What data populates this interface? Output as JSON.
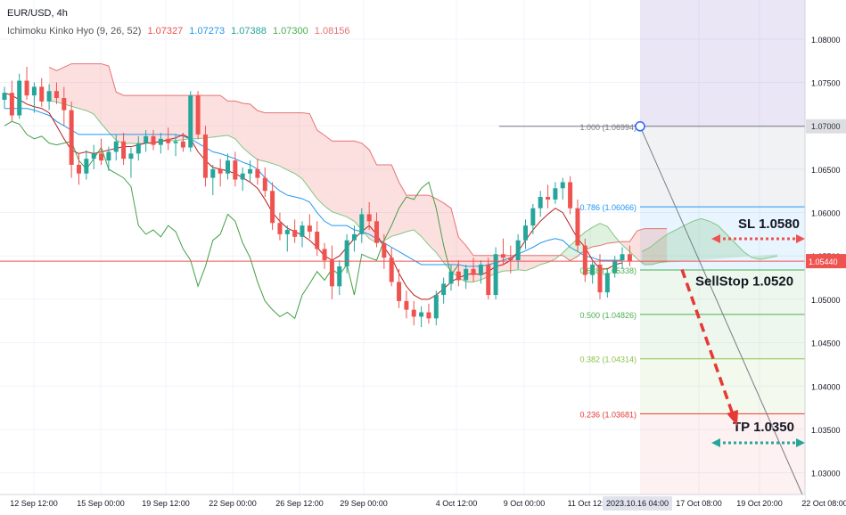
{
  "legend": {
    "symbol": "EUR/USD",
    "timeframe": "4h",
    "indicator": "Ichimoku Kinko Hyo (9, 26, 52)",
    "values": [
      {
        "value": "1.07327",
        "color": "#ef5350"
      },
      {
        "value": "1.07273",
        "color": "#2196f3"
      },
      {
        "value": "1.07388",
        "color": "#26a69a"
      },
      {
        "value": "1.07300",
        "color": "#4caf50"
      },
      {
        "value": "1.08156",
        "color": "#e57373"
      }
    ]
  },
  "chart_data": {
    "type": "candlestick",
    "ylim": [
      1.0275,
      1.0845
    ],
    "y_ticks": [
      "1.08000",
      "1.07500",
      "1.07000",
      "1.06500",
      "1.06000",
      "1.05500",
      "1.05000",
      "1.04500",
      "1.04000",
      "1.03500",
      "1.03000"
    ],
    "x_ticks": [
      "12 Sep 12:00",
      "15 Sep 00:00",
      "19 Sep 12:00",
      "22 Sep 00:00",
      "26 Sep 12:00",
      "29 Sep 00:00",
      "4 Oct 12:00",
      "9 Oct 00:00",
      "11 Oct 12:00",
      "17 Oct 08:00",
      "19 Oct 20:00",
      "22 Oct 08:00"
    ],
    "x_highlight": "2023.10.16 04:00",
    "current_price": {
      "label": "1.05440",
      "value": 1.0544,
      "color": "#ef5350"
    },
    "fibonacci": [
      {
        "level": "1.000",
        "price": 1.06994,
        "label": "1.000 (1.06994)",
        "color": "#787b86"
      },
      {
        "level": "0.786",
        "price": 1.06066,
        "label": "0.786 (1.06066)",
        "color": "#2196f3"
      },
      {
        "level": "0.618",
        "price": 1.05338,
        "label": "0.618 (1.05338)",
        "color": "#4caf50"
      },
      {
        "level": "0.500",
        "price": 1.04826,
        "label": "0.500 (1.04826)",
        "color": "#4caf50"
      },
      {
        "level": "0.382",
        "price": 1.04314,
        "label": "0.382 (1.04314)",
        "color": "#8bc34a"
      },
      {
        "level": "0.236",
        "price": 1.03681,
        "label": "0.236 (1.03681)",
        "color": "#e53935"
      }
    ],
    "annotations": {
      "sl": {
        "text": "SL 1.0580",
        "price": 1.058
      },
      "sellstop": {
        "text": "SellStop 1.0520",
        "price": 1.052
      },
      "tp": {
        "text": "TP 1.0350",
        "price": 1.035
      }
    },
    "candles": [
      [
        1.073,
        1.0745,
        1.072,
        1.0738
      ],
      [
        1.0738,
        1.0752,
        1.0705,
        1.0712
      ],
      [
        1.0712,
        1.076,
        1.0708,
        1.0752
      ],
      [
        1.0752,
        1.0768,
        1.073,
        1.0735
      ],
      [
        1.0735,
        1.075,
        1.0715,
        1.0745
      ],
      [
        1.0745,
        1.0755,
        1.0722,
        1.0728
      ],
      [
        1.0728,
        1.0748,
        1.0718,
        1.074
      ],
      [
        1.074,
        1.075,
        1.0725,
        1.0732
      ],
      [
        1.0732,
        1.0745,
        1.07,
        1.0718
      ],
      [
        1.0718,
        1.0728,
        1.064,
        1.0655
      ],
      [
        1.0655,
        1.0668,
        1.0632,
        1.0645
      ],
      [
        1.0645,
        1.0672,
        1.0638,
        1.0662
      ],
      [
        1.0662,
        1.0678,
        1.065,
        1.0668
      ],
      [
        1.0668,
        1.0685,
        1.0655,
        1.066
      ],
      [
        1.066,
        1.0676,
        1.0648,
        1.067
      ],
      [
        1.067,
        1.069,
        1.066,
        1.0682
      ],
      [
        1.0682,
        1.0692,
        1.0655,
        1.0662
      ],
      [
        1.0662,
        1.0675,
        1.064,
        1.0668
      ],
      [
        1.0668,
        1.0688,
        1.066,
        1.068
      ],
      [
        1.068,
        1.0695,
        1.067,
        1.0688
      ],
      [
        1.0688,
        1.0695,
        1.0672,
        1.0678
      ],
      [
        1.0678,
        1.0692,
        1.0668,
        1.0685
      ],
      [
        1.0685,
        1.0698,
        1.0672,
        1.068
      ],
      [
        1.068,
        1.069,
        1.0665,
        1.0682
      ],
      [
        1.0682,
        1.0692,
        1.067,
        1.0675
      ],
      [
        1.0675,
        1.074,
        1.067,
        1.0735
      ],
      [
        1.0735,
        1.074,
        1.0685,
        1.069
      ],
      [
        1.069,
        1.07,
        1.063,
        1.064
      ],
      [
        1.064,
        1.0655,
        1.062,
        1.065
      ],
      [
        1.065,
        1.0662,
        1.063,
        1.0645
      ],
      [
        1.0645,
        1.0668,
        1.0638,
        1.066
      ],
      [
        1.066,
        1.067,
        1.063,
        1.0638
      ],
      [
        1.0638,
        1.0652,
        1.0625,
        1.0645
      ],
      [
        1.0645,
        1.066,
        1.0636,
        1.065
      ],
      [
        1.065,
        1.0662,
        1.0632,
        1.064
      ],
      [
        1.064,
        1.0652,
        1.0618,
        1.0625
      ],
      [
        1.0625,
        1.0635,
        1.058,
        1.0588
      ],
      [
        1.0588,
        1.06,
        1.0568,
        1.0575
      ],
      [
        1.0575,
        1.0585,
        1.0555,
        1.058
      ],
      [
        1.058,
        1.0592,
        1.0565,
        1.0572
      ],
      [
        1.0572,
        1.059,
        1.056,
        1.0585
      ],
      [
        1.0585,
        1.0598,
        1.057,
        1.0578
      ],
      [
        1.0578,
        1.059,
        1.055,
        1.0558
      ],
      [
        1.0558,
        1.0565,
        1.0535,
        1.0545
      ],
      [
        1.0545,
        1.0562,
        1.05,
        1.0515
      ],
      [
        1.0515,
        1.0545,
        1.0505,
        1.0538
      ],
      [
        1.0538,
        1.0575,
        1.053,
        1.0568
      ],
      [
        1.0568,
        1.0585,
        1.0555,
        1.0575
      ],
      [
        1.0575,
        1.0605,
        1.0565,
        1.0598
      ],
      [
        1.0598,
        1.0612,
        1.058,
        1.059
      ],
      [
        1.059,
        1.06,
        1.056,
        1.0565
      ],
      [
        1.0565,
        1.0575,
        1.0535,
        1.0548
      ],
      [
        1.0548,
        1.056,
        1.0515,
        1.052
      ],
      [
        1.052,
        1.0535,
        1.049,
        1.0498
      ],
      [
        1.0498,
        1.051,
        1.0478,
        1.0488
      ],
      [
        1.0488,
        1.0498,
        1.047,
        1.048
      ],
      [
        1.048,
        1.0492,
        1.0468,
        1.0485
      ],
      [
        1.0485,
        1.0495,
        1.0472,
        1.0478
      ],
      [
        1.0478,
        1.051,
        1.047,
        1.0505
      ],
      [
        1.0505,
        1.0525,
        1.0495,
        1.0518
      ],
      [
        1.0518,
        1.054,
        1.051,
        1.0532
      ],
      [
        1.0532,
        1.0545,
        1.0515,
        1.0522
      ],
      [
        1.0522,
        1.054,
        1.0512,
        1.0535
      ],
      [
        1.0535,
        1.0548,
        1.052,
        1.0528
      ],
      [
        1.0528,
        1.0545,
        1.0518,
        1.054
      ],
      [
        1.054,
        1.0548,
        1.05,
        1.0505
      ],
      [
        1.0505,
        1.056,
        1.05,
        1.0552
      ],
      [
        1.0552,
        1.057,
        1.054,
        1.0548
      ],
      [
        1.0548,
        1.0562,
        1.053,
        1.0545
      ],
      [
        1.0545,
        1.0575,
        1.0535,
        1.0568
      ],
      [
        1.0568,
        1.0592,
        1.0558,
        1.0585
      ],
      [
        1.0585,
        1.061,
        1.0575,
        1.0605
      ],
      [
        1.0605,
        1.0625,
        1.0595,
        1.0618
      ],
      [
        1.0618,
        1.0632,
        1.0605,
        1.0615
      ],
      [
        1.0615,
        1.0635,
        1.061,
        1.0628
      ],
      [
        1.0628,
        1.064,
        1.0615,
        1.0635
      ],
      [
        1.0635,
        1.0642,
        1.0598,
        1.0605
      ],
      [
        1.0605,
        1.0615,
        1.0555,
        1.0562
      ],
      [
        1.0562,
        1.057,
        1.052,
        1.0528
      ],
      [
        1.0528,
        1.0545,
        1.0518,
        1.054
      ],
      [
        1.054,
        1.0552,
        1.05,
        1.0508
      ],
      [
        1.0508,
        1.0535,
        1.0502,
        1.053
      ],
      [
        1.053,
        1.055,
        1.0525,
        1.0545
      ],
      [
        1.0545,
        1.056,
        1.0535,
        1.0552
      ],
      [
        1.0552,
        1.0562,
        1.0538,
        1.0544
      ]
    ],
    "ichimoku": {
      "tenkan": [
        1.0738,
        1.0735,
        1.073,
        1.0725,
        1.0722,
        1.072,
        1.0715,
        1.07,
        1.0685,
        1.0672,
        1.0668,
        1.067,
        1.0668,
        1.067,
        1.0672,
        1.0674,
        1.0676,
        1.0676,
        1.0678,
        1.068,
        1.068,
        1.0682,
        1.0684,
        1.0686,
        1.069,
        1.0685,
        1.067,
        1.066,
        1.0652,
        1.065,
        1.0648,
        1.0645,
        1.064,
        1.0635,
        1.0628,
        1.0615,
        1.06,
        1.059,
        1.0582,
        1.0578,
        1.0574,
        1.0568,
        1.056,
        1.055,
        1.0545,
        1.055,
        1.056,
        1.057,
        1.0578,
        1.0585,
        1.0575,
        1.056,
        1.0548,
        1.053,
        1.0515,
        1.0505,
        1.05,
        1.05,
        1.0505,
        1.0512,
        1.052,
        1.0525,
        1.0528,
        1.053,
        1.0528,
        1.0532,
        1.0538,
        1.054,
        1.0545,
        1.0555,
        1.0568,
        1.058,
        1.059,
        1.0598,
        1.0605,
        1.06,
        1.0585,
        1.057,
        1.056,
        1.0545,
        1.0535,
        1.0535,
        1.054,
        1.0542
      ],
      "kijun": [
        1.072,
        1.072,
        1.072,
        1.072,
        1.0718,
        1.0715,
        1.0712,
        1.0705,
        1.07,
        1.0695,
        1.069,
        1.069,
        1.069,
        1.069,
        1.069,
        1.069,
        1.069,
        1.069,
        1.069,
        1.069,
        1.069,
        1.069,
        1.069,
        1.069,
        1.0688,
        1.0685,
        1.068,
        1.0675,
        1.067,
        1.0668,
        1.0665,
        1.0662,
        1.0658,
        1.0655,
        1.065,
        1.064,
        1.0632,
        1.0625,
        1.062,
        1.0618,
        1.0616,
        1.0612,
        1.06,
        1.059,
        1.0585,
        1.0585,
        1.0585,
        1.058,
        1.0578,
        1.0575,
        1.057,
        1.0565,
        1.056,
        1.0555,
        1.055,
        1.0545,
        1.054,
        1.054,
        1.054,
        1.054,
        1.054,
        1.054,
        1.0538,
        1.0538,
        1.0538,
        1.054,
        1.0542,
        1.0545,
        1.0548,
        1.0552,
        1.0556,
        1.056,
        1.0565,
        1.0568,
        1.057,
        1.0568,
        1.056,
        1.0555,
        1.055,
        1.0548,
        1.0545,
        1.0545,
        1.0545,
        1.0545
      ],
      "chikou": [
        1.07,
        1.0705,
        1.0702,
        1.069,
        1.0685,
        1.0688,
        1.068,
        1.0678,
        1.068,
        1.0682,
        1.066,
        1.065,
        1.0662,
        1.0675,
        1.065,
        1.0645,
        1.064,
        1.063,
        1.0585,
        1.0575,
        1.058,
        1.0572,
        1.0585,
        1.0578,
        1.0558,
        1.0545,
        1.0515,
        1.0538,
        1.0568,
        1.0575,
        1.0598,
        1.059,
        1.0565,
        1.0548,
        1.052,
        1.0498,
        1.0488,
        1.048,
        1.0485,
        1.0478,
        1.0505,
        1.0518,
        1.0532,
        1.0522,
        1.0535,
        1.0528,
        1.054,
        1.0505,
        1.0552,
        1.0548,
        1.0545,
        1.0568,
        1.0585,
        1.0605,
        1.0618,
        1.0615,
        1.0628,
        1.0635,
        1.0605,
        1.0562,
        1.0528,
        1.054
      ]
    }
  }
}
